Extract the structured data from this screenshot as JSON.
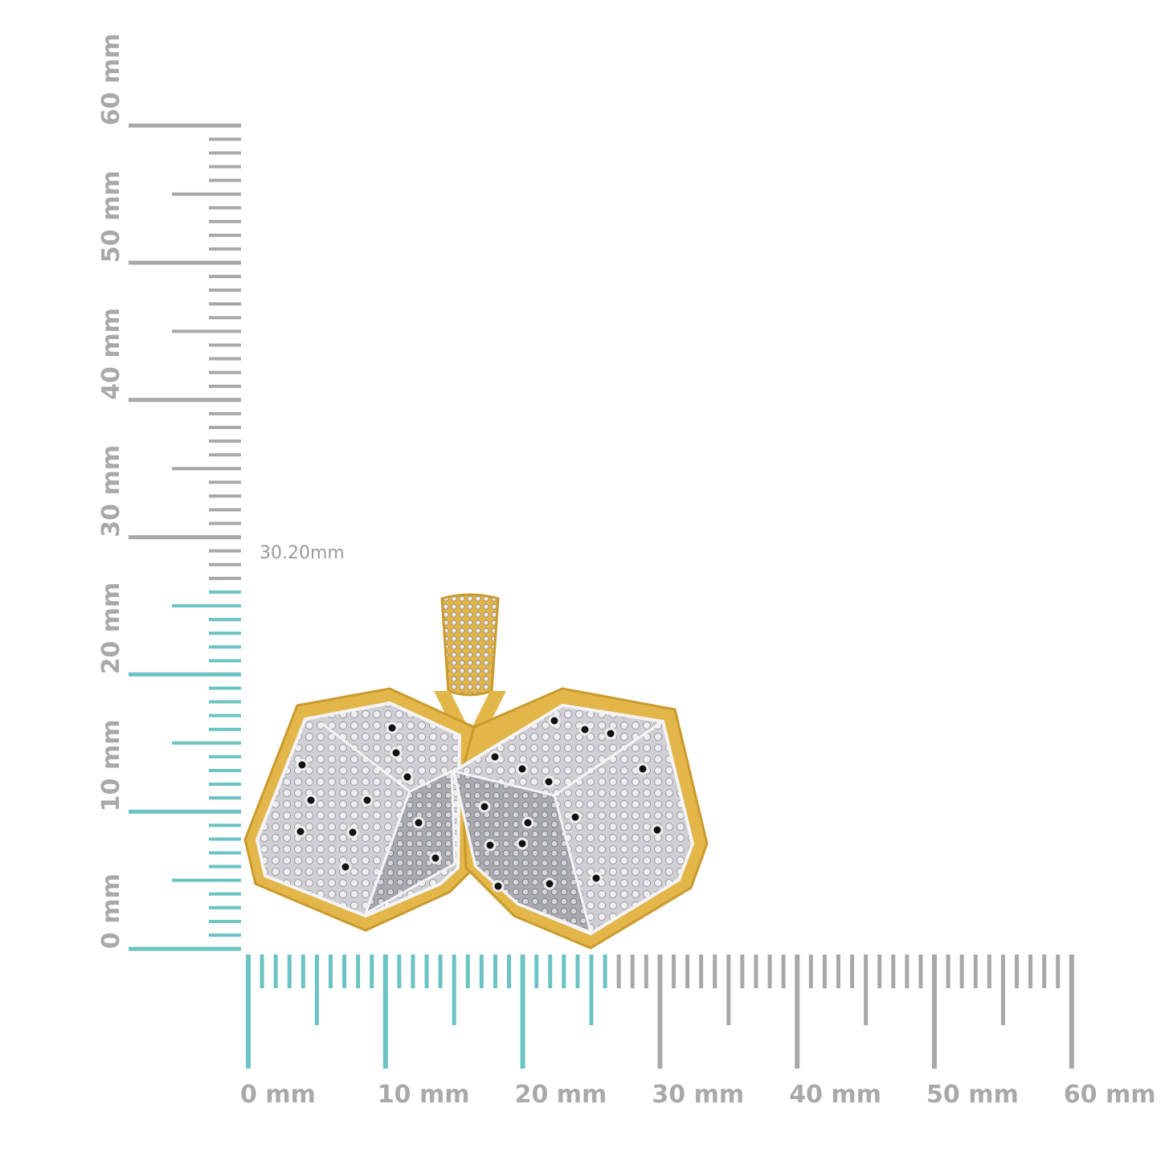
{
  "measurement": {
    "height_label": "30.20mm",
    "unit": "mm",
    "highlight_extent_mm": 26,
    "colors": {
      "highlight": "#6cc3c3",
      "ruler": "#a8a8a8",
      "gold": "#e3b64a",
      "silver": "#d8d8dc",
      "pip": "#111111"
    }
  },
  "vertical_ruler": {
    "range_mm": [
      0,
      60
    ],
    "labels": [
      "0 mm",
      "10 mm",
      "20 mm",
      "30 mm",
      "40 mm",
      "50 mm",
      "60 mm"
    ]
  },
  "horizontal_ruler": {
    "range_mm": [
      0,
      60
    ],
    "labels": [
      "0 mm",
      "10 mm",
      "20 mm",
      "30 mm",
      "40 mm",
      "50 mm",
      "60 mm"
    ]
  },
  "product": {
    "icon": "dice-pendant-icon"
  }
}
